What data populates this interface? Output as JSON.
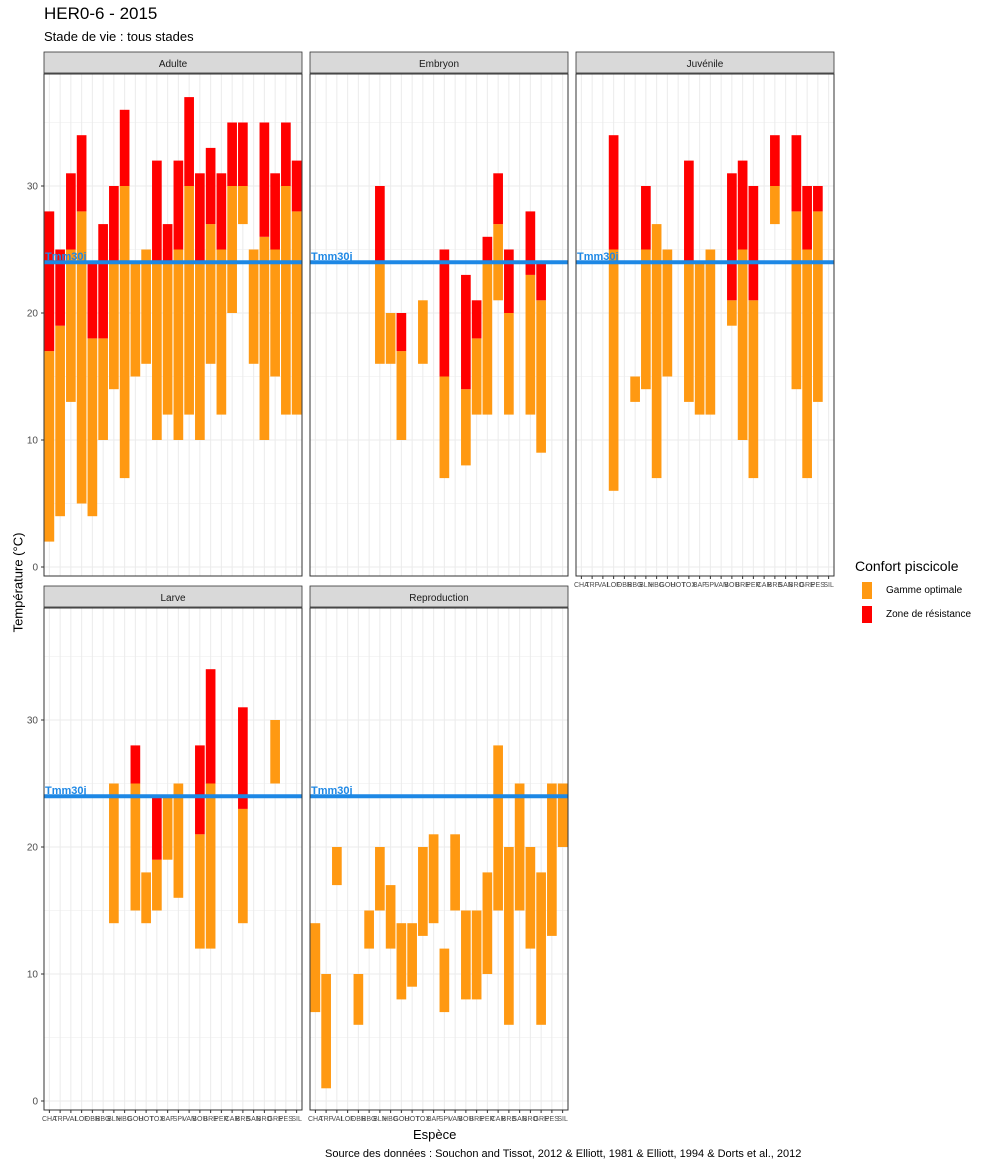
{
  "title": "HER0-6 - 2015",
  "subtitle": "Stade de vie : tous stades",
  "caption": "Source des données : Souchon and Tissot, 2012 & Elliott, 1981 & Elliott, 1994 & Dorts et al., 2012",
  "legend": {
    "title": "Confort piscicole",
    "items": [
      {
        "label": "Gamme optimale",
        "color": "#FF9912"
      },
      {
        "label": "Zone de résistance",
        "color": "#FF0000"
      }
    ]
  },
  "colors": {
    "optimal": "#FF9912",
    "resistance": "#FF0000",
    "reference": "#1E88E5",
    "strip": "#D9D9D9"
  },
  "chart_data": {
    "type": "bar",
    "subtype": "floating-range faceted",
    "title": "HER0-6 - 2015",
    "subtitle": "Stade de vie : tous stades",
    "xlabel": "Espèce",
    "ylabel": "Température (°C)",
    "ylim": [
      0,
      38
    ],
    "yticks": [
      0,
      10,
      20,
      30
    ],
    "grid": true,
    "legend_position": "right",
    "reference_line": {
      "label": "Tmm30j",
      "value": 24
    },
    "categories": [
      "CHA",
      "TRF",
      "VAI",
      "LOF",
      "OBR",
      "BBG",
      "BLN",
      "HBG",
      "GOU",
      "HOT",
      "TOX",
      "BAF",
      "SPI",
      "VAN",
      "BOU",
      "BRE",
      "PER",
      "CAR",
      "BRB",
      "SAN",
      "BRO",
      "GRE",
      "PES",
      "SIL"
    ],
    "note": "Each bar: optimal range [opt_min, opt_max] in orange; resistance zone [opt_max, res_max] in red. null = no data.",
    "facets": [
      {
        "name": "Adulte",
        "bars": [
          [
            2,
            17,
            28
          ],
          [
            4,
            19,
            25
          ],
          [
            13,
            25,
            31
          ],
          [
            5,
            28,
            34
          ],
          [
            4,
            18,
            24
          ],
          [
            10,
            18,
            27
          ],
          [
            14,
            24,
            30
          ],
          [
            7,
            30,
            36
          ],
          [
            15,
            24,
            null
          ],
          [
            16,
            25,
            null
          ],
          [
            10,
            24,
            32
          ],
          [
            12,
            24,
            27
          ],
          [
            10,
            25,
            32
          ],
          [
            12,
            30,
            37
          ],
          [
            10,
            24,
            31
          ],
          [
            16,
            27,
            33
          ],
          [
            12,
            25,
            31
          ],
          [
            20,
            30,
            35
          ],
          [
            27,
            30,
            35
          ],
          [
            16,
            25,
            null
          ],
          [
            10,
            26,
            35
          ],
          [
            15,
            25,
            31
          ],
          [
            12,
            30,
            35
          ],
          [
            12,
            28,
            32
          ]
        ]
      },
      {
        "name": "Embryon",
        "bars": [
          null,
          null,
          null,
          null,
          null,
          null,
          [
            16,
            24,
            30
          ],
          [
            16,
            20,
            null
          ],
          [
            10,
            17,
            20
          ],
          null,
          [
            16,
            21,
            null
          ],
          null,
          [
            7,
            15,
            25
          ],
          null,
          [
            8,
            14,
            23
          ],
          [
            12,
            18,
            21
          ],
          [
            12,
            24,
            26
          ],
          [
            21,
            27,
            31
          ],
          [
            12,
            20,
            25
          ],
          null,
          [
            12,
            23,
            28
          ],
          [
            9,
            21,
            24
          ],
          null,
          null
        ]
      },
      {
        "name": "Juvénile",
        "bars": [
          null,
          null,
          null,
          [
            6,
            25,
            34
          ],
          null,
          [
            13,
            15,
            null
          ],
          [
            14,
            25,
            30
          ],
          [
            7,
            27,
            null
          ],
          [
            15,
            25,
            null
          ],
          null,
          [
            13,
            24,
            32
          ],
          [
            12,
            24,
            null
          ],
          [
            12,
            25,
            null
          ],
          null,
          [
            19,
            21,
            31
          ],
          [
            10,
            25,
            32
          ],
          [
            7,
            21,
            30
          ],
          null,
          [
            27,
            30,
            34
          ],
          null,
          [
            14,
            28,
            34
          ],
          [
            7,
            25,
            30
          ],
          [
            13,
            28,
            30
          ],
          null
        ]
      },
      {
        "name": "Larve",
        "bars": [
          null,
          null,
          null,
          null,
          null,
          null,
          [
            14,
            25,
            null
          ],
          null,
          [
            15,
            25,
            28
          ],
          [
            14,
            18,
            null
          ],
          [
            15,
            19,
            24
          ],
          [
            19,
            24,
            null
          ],
          [
            16,
            25,
            null
          ],
          null,
          [
            12,
            21,
            28
          ],
          [
            12,
            25,
            34
          ],
          null,
          null,
          [
            14,
            23,
            31
          ],
          null,
          null,
          [
            25,
            30,
            null
          ],
          null,
          null
        ]
      },
      {
        "name": "Reproduction",
        "bars": [
          [
            7,
            14,
            null
          ],
          [
            1,
            10,
            null
          ],
          [
            17,
            20,
            null
          ],
          null,
          [
            6,
            10,
            null
          ],
          [
            12,
            15,
            null
          ],
          [
            15,
            20,
            null
          ],
          [
            12,
            17,
            null
          ],
          [
            8,
            14,
            null
          ],
          [
            9,
            14,
            null
          ],
          [
            13,
            20,
            null
          ],
          [
            14,
            21,
            null
          ],
          [
            7,
            12,
            null
          ],
          [
            15,
            21,
            null
          ],
          [
            8,
            15,
            null
          ],
          [
            8,
            15,
            null
          ],
          [
            10,
            18,
            null
          ],
          [
            15,
            28,
            null
          ],
          [
            6,
            20,
            null
          ],
          [
            15,
            25,
            null
          ],
          [
            12,
            20,
            null
          ],
          [
            6,
            18,
            null
          ],
          [
            13,
            25,
            null
          ],
          [
            20,
            25,
            null
          ]
        ]
      }
    ]
  }
}
